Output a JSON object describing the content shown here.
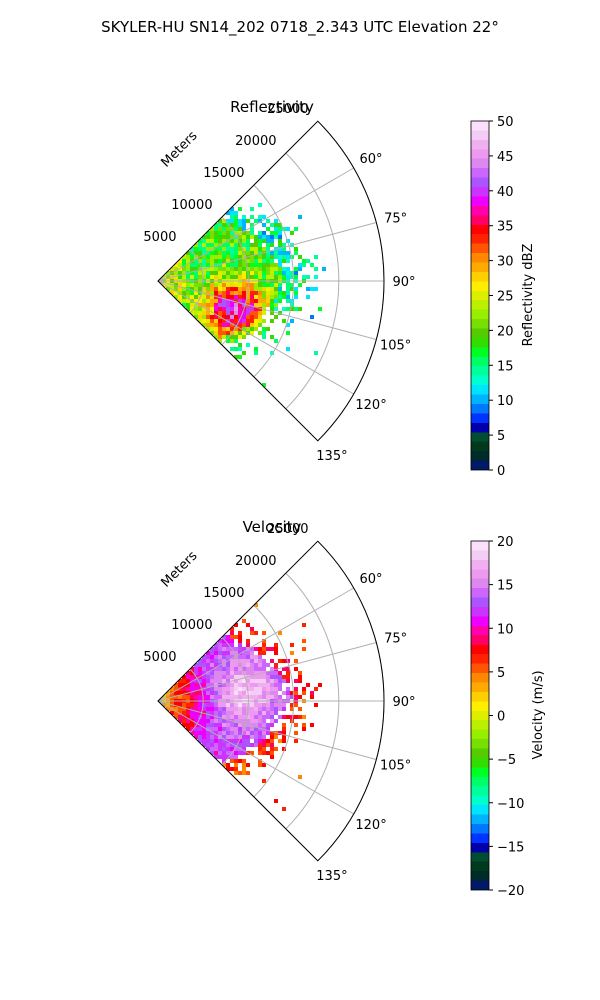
{
  "suptitle": "SKYLER-HU  SN14_202  0718_2.343 UTC Elevation 22°",
  "chart_data": [
    {
      "type": "polar-sector-heatmap",
      "title": "Reflectivity",
      "radial_label": "Meters",
      "theta_range_deg": [
        45,
        135
      ],
      "r_range": [
        0,
        25000
      ],
      "r_ticks": [
        "5000",
        "10000",
        "15000",
        "20000",
        "25000"
      ],
      "theta_ticks": [
        "60°",
        "75°",
        "90°",
        "105°",
        "120°",
        "135°"
      ],
      "grid": true,
      "colorbar": {
        "label": "Reflectivity dBZ",
        "vmin": 0,
        "vmax": 50,
        "ticks": [
          "0",
          "5",
          "10",
          "15",
          "20",
          "25",
          "30",
          "35",
          "40",
          "45",
          "50"
        ]
      }
    },
    {
      "type": "polar-sector-heatmap",
      "title": "Velocity",
      "radial_label": "Meters",
      "theta_range_deg": [
        45,
        135
      ],
      "r_range": [
        0,
        25000
      ],
      "r_ticks": [
        "5000",
        "10000",
        "15000",
        "20000",
        "25000"
      ],
      "theta_ticks": [
        "60°",
        "75°",
        "90°",
        "105°",
        "120°",
        "135°"
      ],
      "grid": true,
      "colorbar": {
        "label": "Velocity (m/s)",
        "vmin": -20,
        "vmax": 20,
        "ticks": [
          "−20",
          "−15",
          "−10",
          "−5",
          "0",
          "5",
          "10",
          "15",
          "20"
        ]
      }
    }
  ],
  "colormap": [
    "#001a66",
    "#002b2b",
    "#003a1a",
    "#004d33",
    "#0000aa",
    "#0033ff",
    "#0077ff",
    "#00b3ff",
    "#00e5ff",
    "#00ffcc",
    "#00ff99",
    "#00ff66",
    "#00ff22",
    "#33dd00",
    "#55cc00",
    "#77e000",
    "#99ee00",
    "#bbf000",
    "#ddee00",
    "#ffee00",
    "#ffd000",
    "#ffaa00",
    "#ff8800",
    "#ff5500",
    "#ff2200",
    "#ff0000",
    "#ff0066",
    "#ff00aa",
    "#ee00ff",
    "#cc33ff",
    "#aa55ff",
    "#cc66ff",
    "#dd88ee",
    "#ee99f0",
    "#f0b0f0",
    "#f5ccf5",
    "#fae0fa"
  ]
}
